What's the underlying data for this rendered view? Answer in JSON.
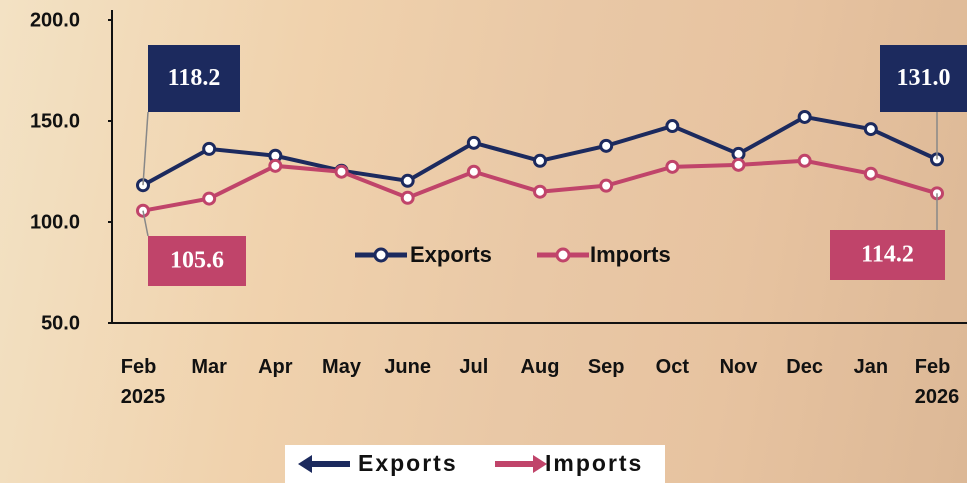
{
  "chart_data": {
    "type": "line",
    "categories": [
      "Feb 2025",
      "Mar",
      "Apr",
      "May",
      "June",
      "Jul",
      "Aug",
      "Sep",
      "Oct",
      "Nov",
      "Dec",
      "Jan",
      "Feb 2026"
    ],
    "series": [
      {
        "name": "Exports",
        "color": "#1c2a5e",
        "values": [
          118.2,
          136.2,
          132.8,
          125.4,
          120.4,
          139.2,
          130.3,
          137.7,
          147.5,
          133.7,
          152.0,
          146.0,
          131.0
        ],
        "value_labels": [
          "118.2",
          null,
          null,
          null,
          null,
          null,
          null,
          null,
          null,
          null,
          null,
          null,
          "131.0"
        ]
      },
      {
        "name": "Imports",
        "color": "#c0446a",
        "values": [
          105.6,
          111.6,
          127.8,
          124.9,
          112.0,
          124.9,
          115.0,
          118.0,
          127.3,
          128.3,
          130.3,
          123.9,
          114.2
        ],
        "value_labels": [
          "105.6",
          null,
          null,
          null,
          null,
          null,
          null,
          null,
          null,
          null,
          null,
          null,
          "114.2"
        ]
      }
    ],
    "ylim": [
      50,
      200
    ],
    "yticks": [
      {
        "value": 50,
        "label": "50.0"
      },
      {
        "value": 100,
        "label": "100.0"
      },
      {
        "value": 150,
        "label": "150.0"
      },
      {
        "value": 200,
        "label": "200.0"
      }
    ]
  }
}
